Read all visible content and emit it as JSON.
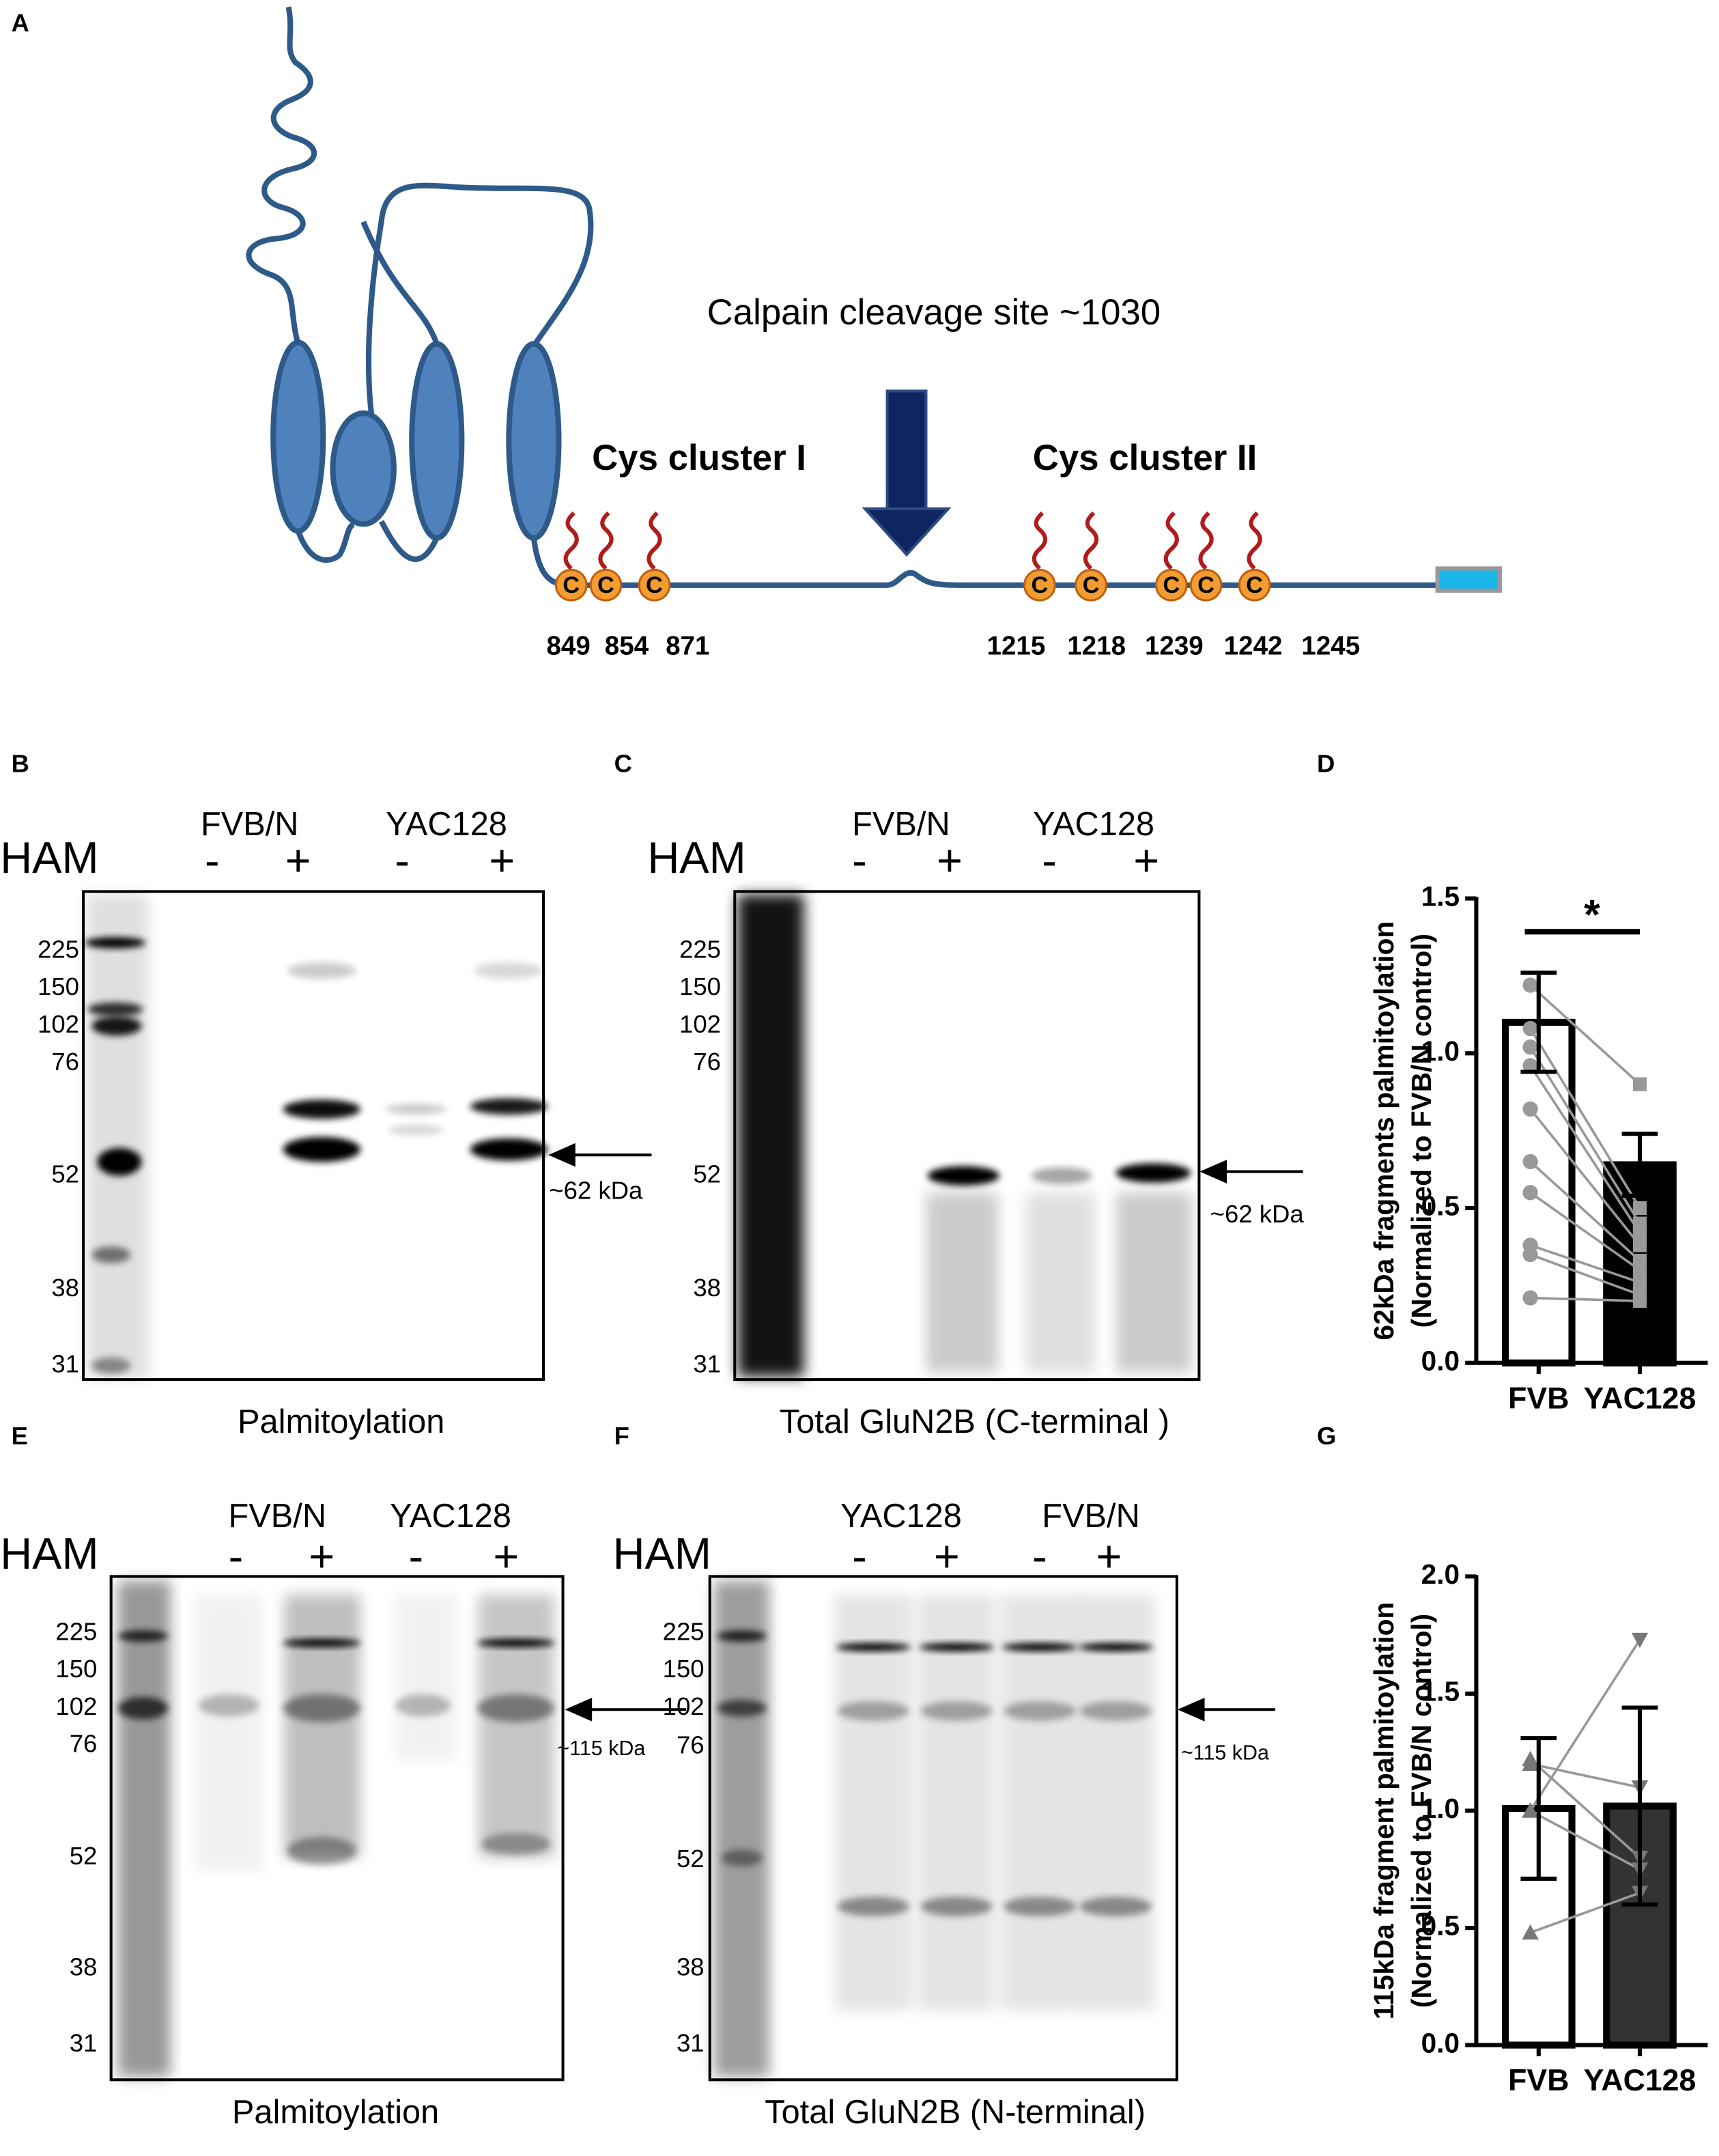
{
  "panel_a": {
    "label": "A",
    "cleavage": "Calpain cleavage site ~1030",
    "cluster1": "Cys cluster I",
    "cluster2": "Cys cluster II",
    "cys_labels": [
      "C",
      "C",
      "C",
      "C",
      "C",
      "C",
      "C",
      "C"
    ],
    "sites": [
      849,
      854,
      871,
      1215,
      1218,
      1239,
      1242,
      1245
    ]
  },
  "gels": [
    {
      "label": "B",
      "groups": [
        "FVB/N",
        "YAC128"
      ],
      "ham": "HAM",
      "signs": [
        "-",
        "+",
        "-",
        "+"
      ],
      "markers": [
        225,
        150,
        102,
        76,
        52,
        38,
        31
      ],
      "arrow_label": "~62 kDa",
      "caption": "Palmitoylation"
    },
    {
      "label": "C",
      "groups": [
        "FVB/N",
        "YAC128"
      ],
      "ham": "HAM",
      "signs": [
        "-",
        "+",
        "-",
        "+"
      ],
      "markers": [
        225,
        150,
        102,
        76,
        52,
        38,
        31
      ],
      "arrow_label": "~62 kDa",
      "caption": "Total GluN2B (C-terminal )"
    },
    {
      "label": "E",
      "groups": [
        "FVB/N",
        "YAC128"
      ],
      "ham": "HAM",
      "signs": [
        "-",
        "+",
        "-",
        "+"
      ],
      "markers": [
        225,
        150,
        102,
        76,
        52,
        38,
        31
      ],
      "arrow_label": "~115 kDa",
      "caption": "Palmitoylation"
    },
    {
      "label": "F",
      "groups": [
        "YAC128",
        "FVB/N"
      ],
      "ham": "HAM",
      "signs": [
        "-",
        "+",
        "-",
        "+"
      ],
      "markers": [
        225,
        150,
        102,
        76,
        52,
        38,
        31
      ],
      "arrow_label": "~115 kDa",
      "caption": "Total GluN2B (N-terminal)"
    }
  ],
  "chart_data": [
    {
      "label": "D",
      "type": "bar",
      "ylabel": [
        "62kDa fragments palmitoylation",
        "(Normalized to FVB/N control)"
      ],
      "categories": [
        "FVB",
        "YAC128"
      ],
      "values": [
        1.1,
        0.64
      ],
      "errors": [
        0.16,
        0.1
      ],
      "colors": [
        "#ffffff",
        "#000000"
      ],
      "points": [
        [
          1.22,
          1.08,
          1.02,
          0.96,
          0.82,
          0.65,
          0.55,
          0.38,
          0.35,
          0.21
        ],
        [
          0.9,
          0.5,
          0.45,
          0.42,
          0.38,
          0.33,
          0.3,
          0.26,
          0.22,
          0.2
        ]
      ],
      "point_markers": [
        "circle",
        "square"
      ],
      "ylim": [
        0,
        1.5
      ],
      "yticks": [
        {
          "value": 0,
          "label": "0.0"
        },
        {
          "value": 0.5,
          "label": "0.5"
        },
        {
          "value": 1,
          "label": "1.0"
        },
        {
          "value": 1.5,
          "label": "1.5"
        }
      ],
      "significance": "*"
    },
    {
      "label": "G",
      "type": "bar",
      "ylabel": [
        "115kDa fragment palmitoylation",
        "(Normalized to FVB/N control)"
      ],
      "categories": [
        "FVB",
        "YAC128"
      ],
      "values": [
        1.01,
        1.02
      ],
      "errors": [
        0.3,
        0.42
      ],
      "colors": [
        "#ffffff",
        "#333333"
      ],
      "points": [
        [
          1.22,
          1.2,
          1.0,
          1.0,
          0.48
        ],
        [
          0.8,
          1.1,
          0.75,
          1.73,
          0.65
        ]
      ],
      "point_markers": [
        "triangle",
        "triangle-down"
      ],
      "ylim": [
        0,
        2
      ],
      "yticks": [
        {
          "value": 0,
          "label": "0.0"
        },
        {
          "value": 0.5,
          "label": "0.5"
        },
        {
          "value": 1,
          "label": "1.0"
        },
        {
          "value": 1.5,
          "label": "1.5"
        },
        {
          "value": 2,
          "label": "2.0"
        }
      ]
    }
  ]
}
